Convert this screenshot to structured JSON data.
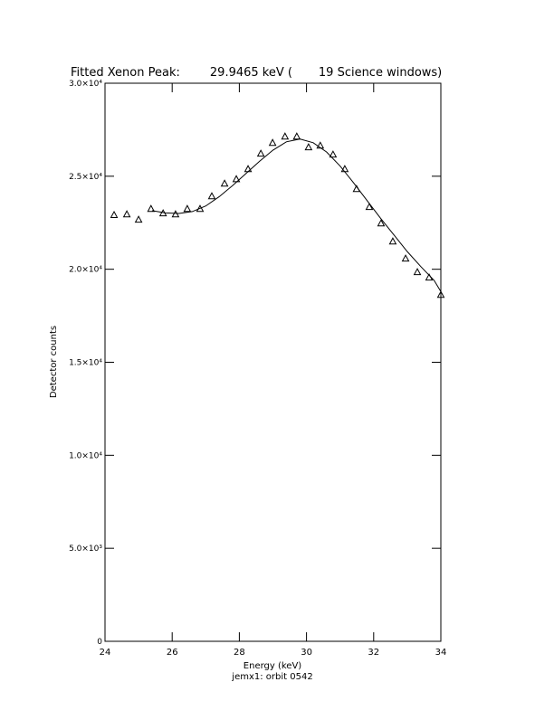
{
  "chart_data": {
    "type": "scatter",
    "title": "Fitted Xenon Peak:        29.9465 keV (       19 Science windows)",
    "x_label": "Energy (keV)",
    "y_label": "Detector counts",
    "footnote": "jemx1: orbit 0542",
    "xlim": [
      24,
      34
    ],
    "xticks": [
      24,
      26,
      28,
      30,
      32,
      34
    ],
    "ylim": [
      0,
      30000
    ],
    "yticks": [
      {
        "value": 0,
        "label": "0"
      },
      {
        "value": 5000,
        "label": "5.0×10³"
      },
      {
        "value": 10000,
        "label": "1.0×10⁴"
      },
      {
        "value": 15000,
        "label": "1.5×10⁴"
      },
      {
        "value": 20000,
        "label": "2.0×10⁴"
      },
      {
        "value": 25000,
        "label": "2.5×10⁴"
      },
      {
        "value": 30000,
        "label": "3.0×10⁴"
      }
    ],
    "series": [
      {
        "type": "scatter",
        "marker": "triangle",
        "color": "#000000",
        "x": [
          24.27,
          24.65,
          25.0,
          25.37,
          25.73,
          26.1,
          26.45,
          26.83,
          27.18,
          27.56,
          27.91,
          28.26,
          28.64,
          28.99,
          29.36,
          29.71,
          30.06,
          30.41,
          30.79,
          31.14,
          31.49,
          31.87,
          32.22,
          32.57,
          32.95,
          33.3,
          33.65,
          34.0
        ],
        "values": [
          22900,
          22940,
          22650,
          23230,
          22990,
          22940,
          23230,
          23230,
          23910,
          24590,
          24830,
          25370,
          26200,
          26780,
          27120,
          27120,
          26540,
          26630,
          26150,
          25370,
          24300,
          23330,
          22450,
          21480,
          20560,
          19830,
          19540,
          18610
        ]
      },
      {
        "type": "line",
        "color": "#000000",
        "x": [
          25.4,
          25.8,
          26.2,
          26.6,
          27.0,
          27.4,
          27.8,
          28.2,
          28.6,
          29.0,
          29.4,
          29.8,
          30.2,
          30.6,
          31.0,
          31.4,
          31.8,
          32.2,
          32.6,
          33.0,
          33.4,
          33.8,
          34.0
        ],
        "values": [
          23150,
          23030,
          23000,
          23100,
          23400,
          23900,
          24500,
          25150,
          25800,
          26400,
          26850,
          27000,
          26800,
          26300,
          25550,
          24650,
          23700,
          22750,
          21850,
          20950,
          20150,
          19400,
          18800
        ]
      }
    ]
  }
}
